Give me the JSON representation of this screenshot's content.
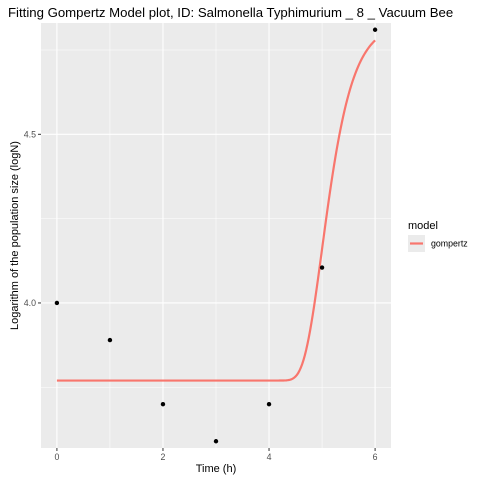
{
  "chart_data": {
    "type": "line",
    "title": "Fitting Gompertz Model plot, ID: Salmonella Typhimurium _ 8 _ Vacuum Bee",
    "xlabel": "Time (h)",
    "ylabel": "Logarithm of the population size (logN)",
    "xlim": [
      -0.3,
      6.3
    ],
    "ylim": [
      3.57,
      4.83
    ],
    "x_ticks": [
      0,
      2,
      4,
      6
    ],
    "x_tick_labels": [
      "0",
      "2",
      "4",
      "6"
    ],
    "y_ticks": [
      4.0,
      4.5
    ],
    "y_tick_labels": [
      "4.0",
      "4.5"
    ],
    "grid": true,
    "legend": {
      "title": "model",
      "placement": "right",
      "entries": [
        {
          "name": "gompertz",
          "color": "#f8766d"
        }
      ]
    },
    "points": {
      "x": [
        0,
        1,
        2,
        3,
        4,
        5,
        6
      ],
      "y": [
        4.0,
        3.89,
        3.7,
        3.59,
        3.7,
        4.105,
        4.81
      ],
      "color": "#000000"
    },
    "series": [
      {
        "name": "gompertz",
        "color": "#f8766d",
        "model": {
          "A": 3.77,
          "C": 1.06,
          "B": 3.0,
          "M": 5.0
        },
        "x_range": [
          0,
          6
        ]
      }
    ]
  }
}
